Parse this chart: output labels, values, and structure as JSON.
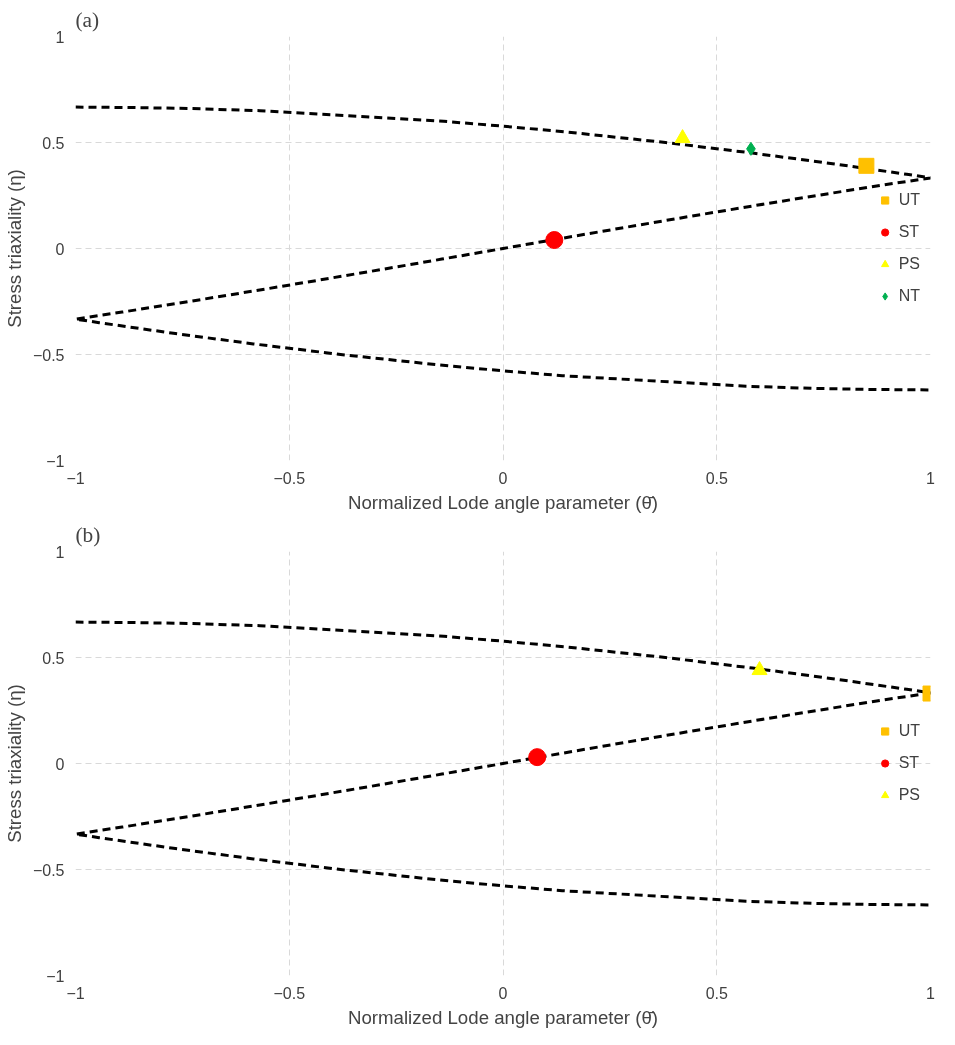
{
  "chart_data": [
    {
      "type": "scatter",
      "title": "(a)",
      "xlabel": "Normalized Lode angle parameter (θ̄)",
      "ylabel": "Stress triaxiality (η)",
      "xlim": [
        -1,
        1
      ],
      "ylim": [
        -1,
        1
      ],
      "xticks": [
        -1,
        -0.5,
        0,
        0.5,
        1
      ],
      "yticks": [
        -1,
        -0.5,
        0,
        0.5,
        1
      ],
      "grid": true,
      "legend": "right",
      "series": [
        {
          "type": "line",
          "color": "#000000",
          "line_style": "dashed",
          "marker": "none",
          "x": [
            -1,
            -0.865,
            -0.728,
            -0.5685,
            -0.1386,
            0,
            0.147,
            0.38,
            0.584,
            0.771,
            0.9445,
            1,
            0.891,
            0.734,
            0.582,
            0.433,
            0.287,
            0.143,
            0,
            -0.143,
            -0.287,
            -0.433,
            -0.582,
            -0.734,
            -0.891,
            -1,
            -0.9445,
            -0.771,
            -0.584,
            -0.38,
            -0.147,
            0,
            0.1386,
            0.5685,
            0.728,
            0.865,
            1
          ],
          "values": [
            0.667,
            0.665,
            0.66,
            0.65,
            0.6,
            0.577,
            0.55,
            0.5,
            0.45,
            0.4,
            0.35,
            0.333,
            0.3,
            0.25,
            0.2,
            0.15,
            0.1,
            0.05,
            0,
            -0.05,
            -0.1,
            -0.15,
            -0.2,
            -0.25,
            -0.3,
            -0.333,
            -0.35,
            -0.4,
            -0.45,
            -0.5,
            -0.55,
            -0.577,
            -0.6,
            -0.65,
            -0.66,
            -0.665,
            -0.667
          ]
        },
        {
          "name": "UT",
          "color": "#ffc000",
          "marker": "square",
          "x": [
            0.85
          ],
          "values": [
            0.39
          ]
        },
        {
          "name": "ST",
          "color": "#ff0000",
          "marker": "circle",
          "x": [
            0.12
          ],
          "values": [
            0.04
          ]
        },
        {
          "name": "PS",
          "color": "#ffff00",
          "marker": "triangle",
          "x": [
            0.42
          ],
          "values": [
            0.52
          ]
        },
        {
          "name": "NT",
          "color": "#00b050",
          "marker": "diamond",
          "x": [
            0.58
          ],
          "values": [
            0.47
          ]
        }
      ]
    },
    {
      "type": "scatter",
      "title": "(b)",
      "xlabel": "Normalized Lode angle parameter (θ̄)",
      "ylabel": "Stress triaxiality (η)",
      "xlim": [
        -1,
        1
      ],
      "ylim": [
        -1,
        1
      ],
      "xticks": [
        -1,
        -0.5,
        0,
        0.5,
        1
      ],
      "yticks": [
        -1,
        -0.5,
        0,
        0.5,
        1
      ],
      "grid": true,
      "legend": "right",
      "series": [
        {
          "type": "line",
          "color": "#000000",
          "line_style": "dashed",
          "marker": "none",
          "x": [
            -1,
            -0.865,
            -0.728,
            -0.5685,
            -0.1386,
            0,
            0.147,
            0.38,
            0.584,
            0.771,
            0.9445,
            1,
            0.891,
            0.734,
            0.582,
            0.433,
            0.287,
            0.143,
            0,
            -0.143,
            -0.287,
            -0.433,
            -0.582,
            -0.734,
            -0.891,
            -1,
            -0.9445,
            -0.771,
            -0.584,
            -0.38,
            -0.147,
            0,
            0.1386,
            0.5685,
            0.728,
            0.865,
            1
          ],
          "values": [
            0.667,
            0.665,
            0.66,
            0.65,
            0.6,
            0.577,
            0.55,
            0.5,
            0.45,
            0.4,
            0.35,
            0.333,
            0.3,
            0.25,
            0.2,
            0.15,
            0.1,
            0.05,
            0,
            -0.05,
            -0.1,
            -0.15,
            -0.2,
            -0.25,
            -0.3,
            -0.333,
            -0.35,
            -0.4,
            -0.45,
            -0.5,
            -0.55,
            -0.577,
            -0.6,
            -0.65,
            -0.66,
            -0.665,
            -0.667
          ]
        },
        {
          "name": "UT",
          "color": "#ffc000",
          "marker": "square",
          "x": [
            1
          ],
          "values": [
            0.33
          ]
        },
        {
          "name": "ST",
          "color": "#ff0000",
          "marker": "circle",
          "x": [
            0.08
          ],
          "values": [
            0.03
          ]
        },
        {
          "name": "PS",
          "color": "#ffff00",
          "marker": "triangle",
          "x": [
            0.6
          ],
          "values": [
            0.44
          ]
        }
      ]
    }
  ]
}
